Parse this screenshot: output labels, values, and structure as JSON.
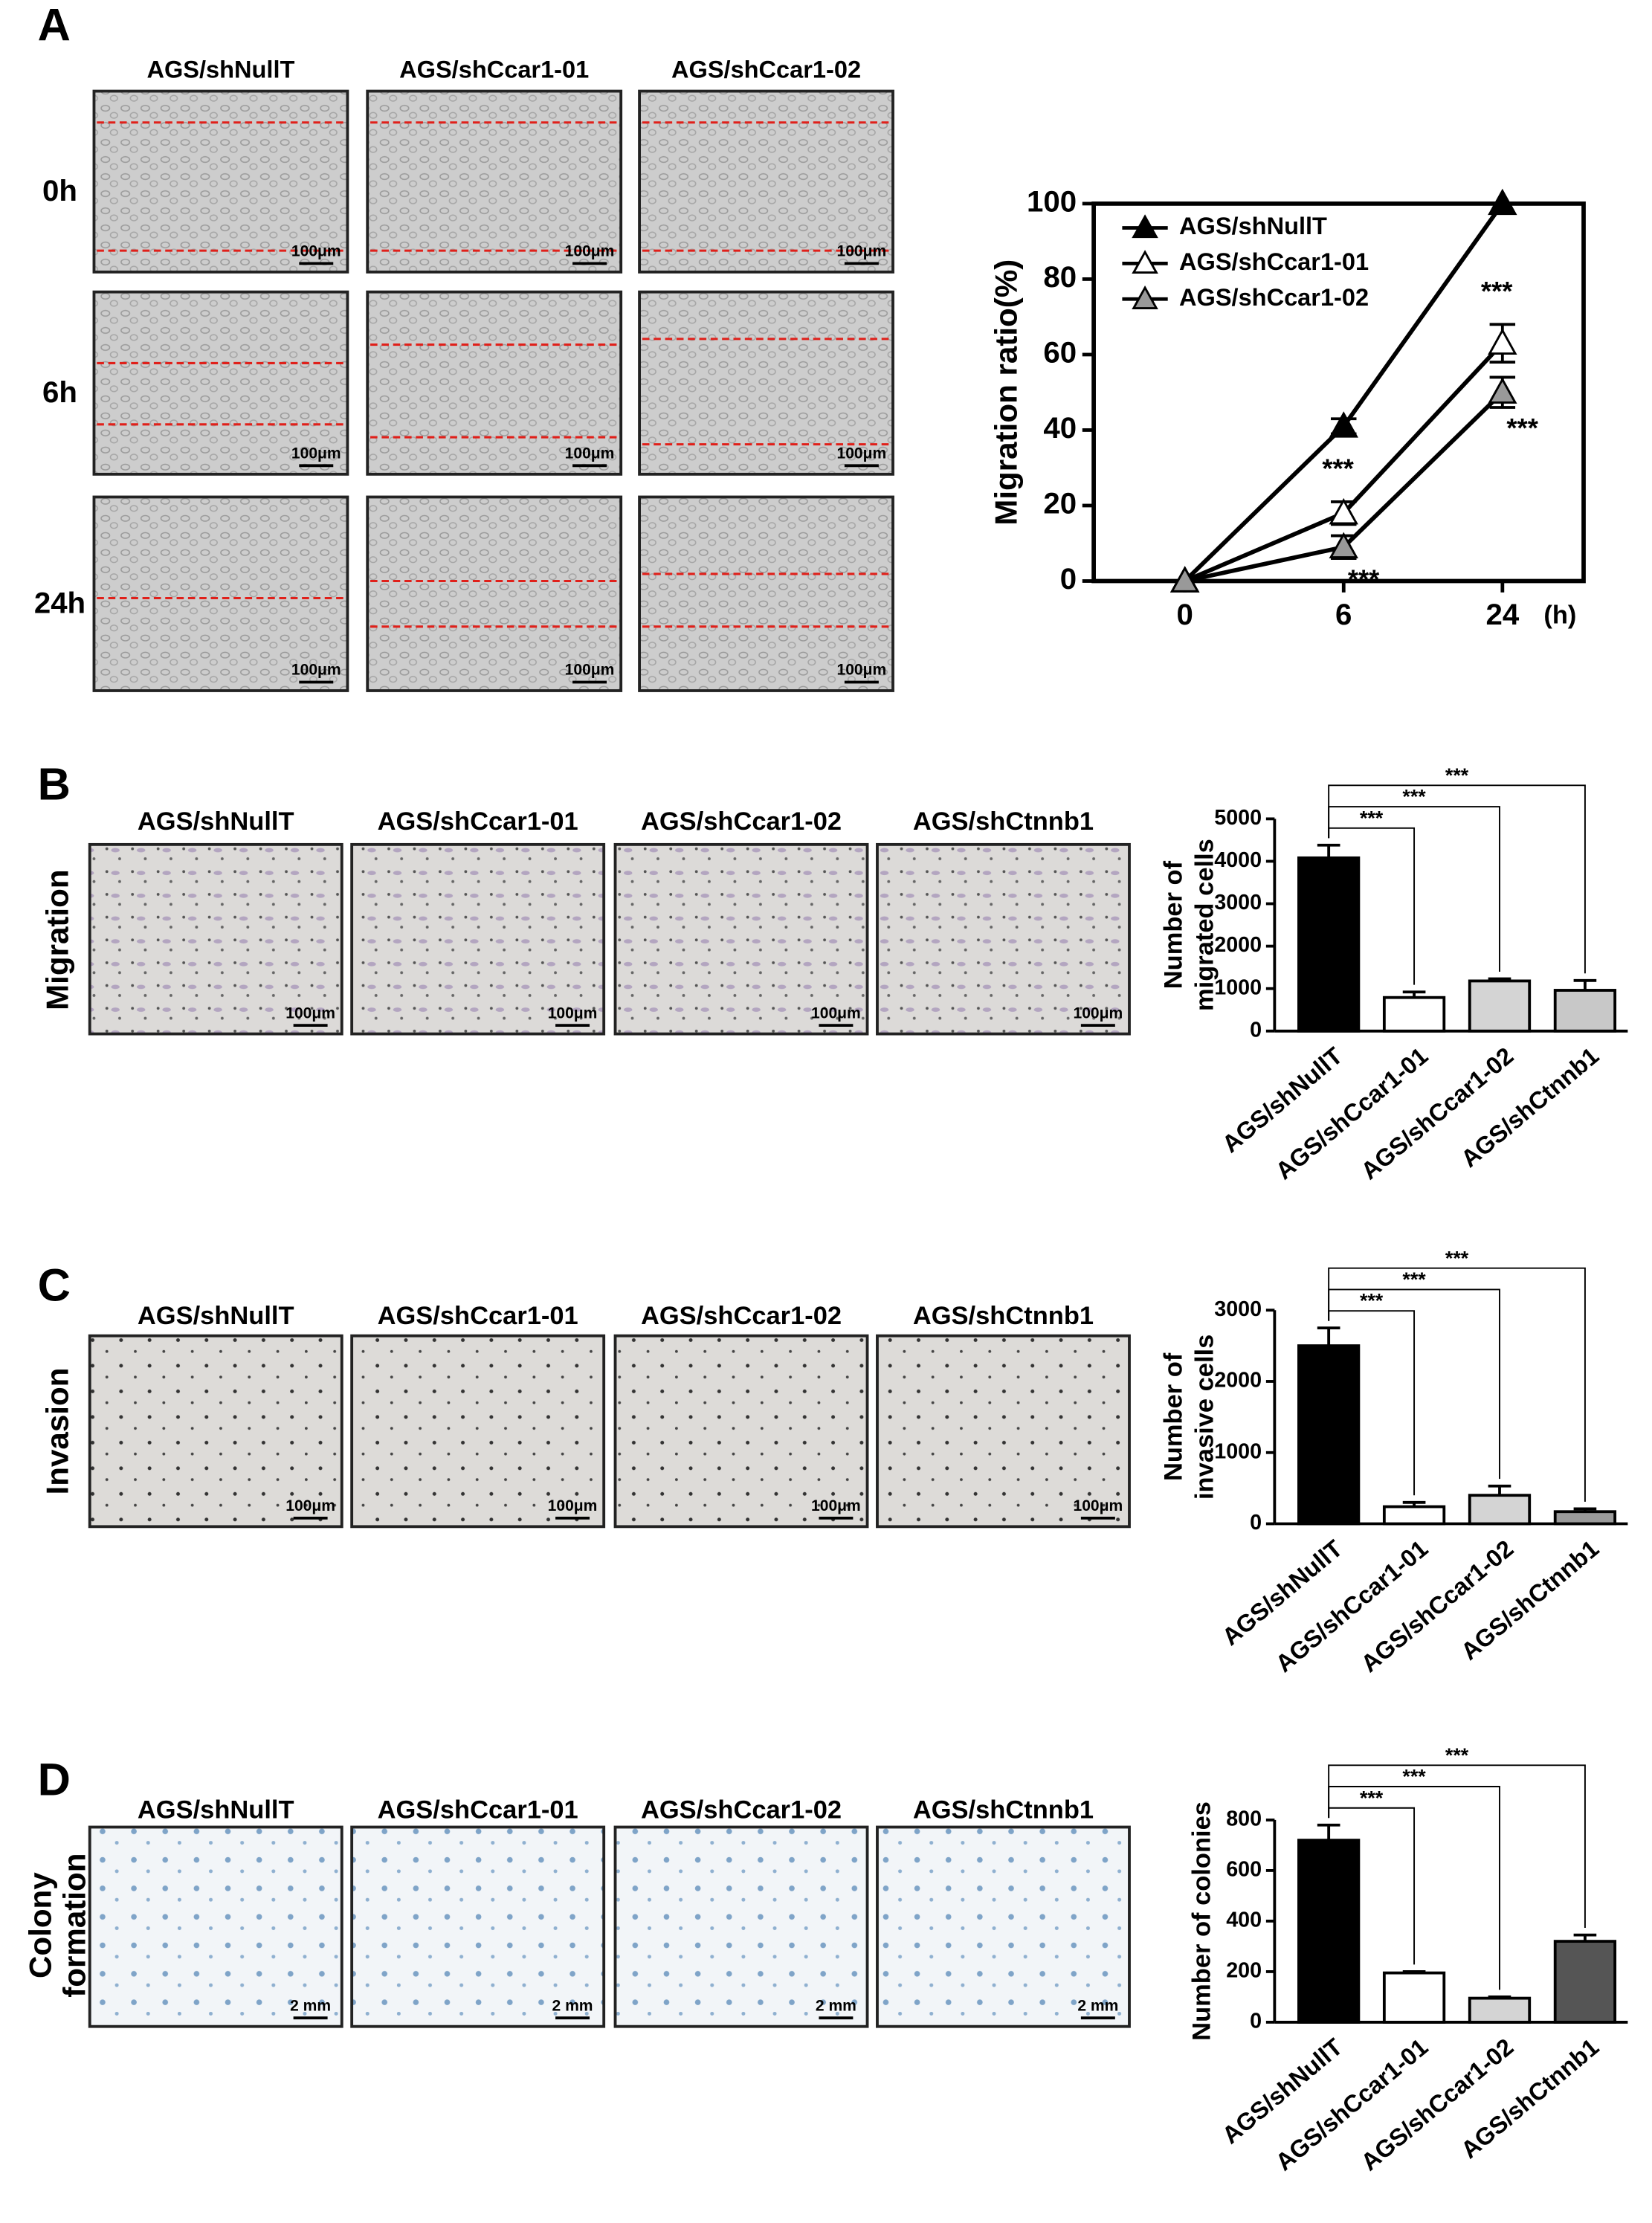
{
  "figure": {
    "panels": [
      {
        "label": "A",
        "columns": [
          "AGS/shNullT",
          "AGS/shCcar1-01",
          "AGS/shCcar1-02"
        ],
        "rows": [
          "0h",
          "6h",
          "24h"
        ],
        "scale_bar": "100μm"
      },
      {
        "label": "B",
        "columns": [
          "AGS/shNullT",
          "AGS/shCcar1-01",
          "AGS/shCcar1-02",
          "AGS/shCtnnb1"
        ],
        "side_label": [
          "Migration"
        ],
        "scale_bar": "100μm"
      },
      {
        "label": "C",
        "columns": [
          "AGS/shNullT",
          "AGS/shCcar1-01",
          "AGS/shCcar1-02",
          "AGS/shCtnnb1"
        ],
        "side_label": [
          "Invasion"
        ],
        "scale_bar": "100μm"
      },
      {
        "label": "D",
        "columns": [
          "AGS/shNullT",
          "AGS/shCcar1-01",
          "AGS/shCcar1-02",
          "AGS/shCtnnb1"
        ],
        "side_label": [
          "Colony",
          "formation"
        ],
        "scale_bar": "2 mm"
      }
    ]
  },
  "chart_data": [
    {
      "type": "line",
      "categories": [
        "0",
        "6",
        "24"
      ],
      "x_unit": "(h)",
      "ylabel": "Migration ratio(%)",
      "ylim": [
        0,
        100
      ],
      "yticks": [
        0,
        20,
        40,
        60,
        80,
        100
      ],
      "legend": "upper left",
      "series": [
        {
          "name": "AGS/shNullT",
          "color": "#000000",
          "marker_fill": "#000000",
          "values": [
            0,
            41,
            100
          ],
          "errors": [
            0,
            2,
            0
          ]
        },
        {
          "name": "AGS/shCcar1-01",
          "color": "#000000",
          "marker_fill": "#ffffff",
          "values": [
            0,
            18,
            63
          ],
          "errors": [
            0,
            3,
            5
          ],
          "significance": [
            null,
            "***",
            "***"
          ]
        },
        {
          "name": "AGS/shCcar1-02",
          "color": "#000000",
          "marker_fill": "#999999",
          "values": [
            0,
            9,
            50
          ],
          "errors": [
            0,
            3,
            4
          ],
          "significance": [
            null,
            "***",
            "***"
          ]
        }
      ]
    },
    {
      "type": "bar",
      "categories": [
        "AGS/shNullT",
        "AGS/shCcar1-01",
        "AGS/shCcar1-02",
        "AGS/shCtnnb1"
      ],
      "values": [
        4080,
        790,
        1180,
        960
      ],
      "errors": [
        300,
        130,
        50,
        230
      ],
      "colors": [
        "#000000",
        "#ffffff",
        "#d4d4d4",
        "#c8c8c8"
      ],
      "ylabel": [
        "Number of",
        "migrated cells"
      ],
      "ylim": [
        0,
        5000
      ],
      "yticks": [
        0,
        1000,
        2000,
        3000,
        4000,
        5000
      ],
      "significance": [
        null,
        "***",
        "***",
        "***"
      ]
    },
    {
      "type": "bar",
      "categories": [
        "AGS/shNullT",
        "AGS/shCcar1-01",
        "AGS/shCcar1-02",
        "AGS/shCtnnb1"
      ],
      "values": [
        2500,
        240,
        400,
        170
      ],
      "errors": [
        250,
        60,
        130,
        40
      ],
      "colors": [
        "#000000",
        "#ffffff",
        "#d4d4d4",
        "#9a9a9a"
      ],
      "ylabel": [
        "Number of",
        "invasive cells"
      ],
      "ylim": [
        0,
        3000
      ],
      "yticks": [
        0,
        1000,
        2000,
        3000
      ],
      "significance": [
        null,
        "***",
        "***",
        "***"
      ]
    },
    {
      "type": "bar",
      "categories": [
        "AGS/shNullT",
        "AGS/shCcar1-01",
        "AGS/shCcar1-02",
        "AGS/shCtnnb1"
      ],
      "values": [
        720,
        195,
        95,
        320
      ],
      "errors": [
        60,
        5,
        5,
        25
      ],
      "colors": [
        "#000000",
        "#ffffff",
        "#d4d4d4",
        "#555555"
      ],
      "ylabel": [
        "Number of colonies"
      ],
      "ylim": [
        0,
        800
      ],
      "yticks": [
        0,
        200,
        400,
        600,
        800
      ],
      "significance": [
        null,
        "***",
        "***",
        "***"
      ]
    }
  ]
}
